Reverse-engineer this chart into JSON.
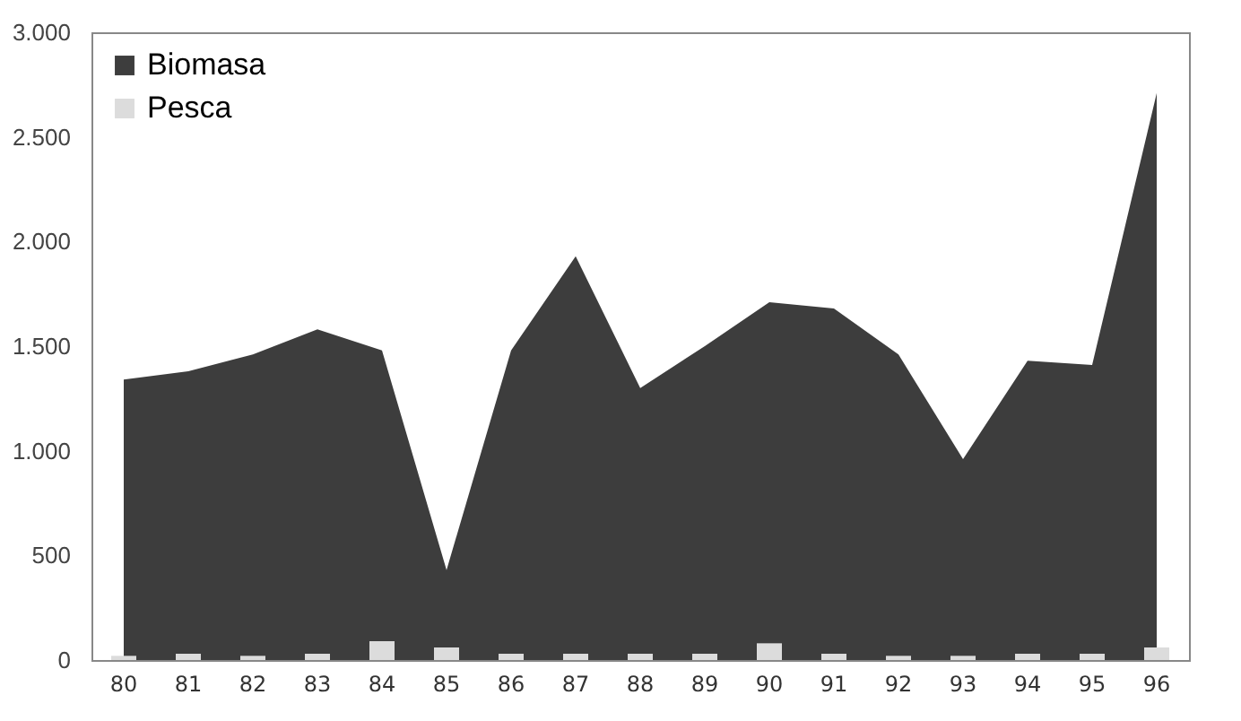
{
  "chart_data": {
    "type": "area",
    "categories": [
      "80",
      "81",
      "82",
      "83",
      "84",
      "85",
      "86",
      "87",
      "88",
      "89",
      "90",
      "91",
      "92",
      "93",
      "94",
      "95",
      "96"
    ],
    "series": [
      {
        "name": "Biomasa",
        "color": "#3d3d3d",
        "values": [
          1340,
          1380,
          1460,
          1580,
          1480,
          430,
          1480,
          1930,
          1300,
          1500,
          1710,
          1680,
          1460,
          960,
          1430,
          1410,
          2710
        ]
      },
      {
        "name": "Pesca",
        "type": "bar",
        "color": "#dcdcdc",
        "values": [
          20,
          30,
          20,
          30,
          90,
          60,
          30,
          30,
          30,
          30,
          80,
          30,
          20,
          20,
          30,
          30,
          60
        ]
      }
    ],
    "ylim": [
      0,
      3000
    ],
    "yticks": [
      {
        "value": 0,
        "label": "0"
      },
      {
        "value": 500,
        "label": "500"
      },
      {
        "value": 1000,
        "label": "1.000"
      },
      {
        "value": 1500,
        "label": "1.500"
      },
      {
        "value": 2000,
        "label": "2.000"
      },
      {
        "value": 2500,
        "label": "2.500"
      },
      {
        "value": 3000,
        "label": "3.000"
      }
    ],
    "grid": false,
    "legend": "top left"
  }
}
